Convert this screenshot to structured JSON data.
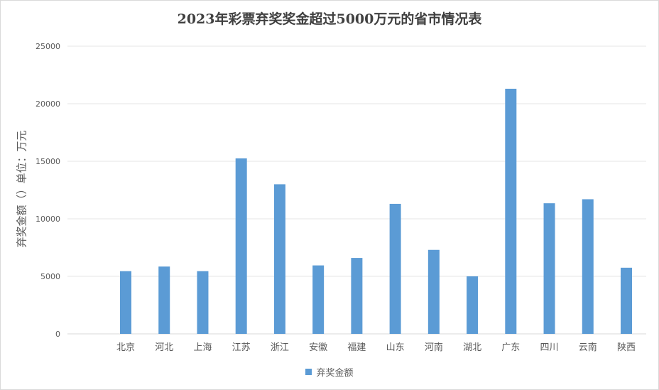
{
  "chart_data": {
    "type": "bar",
    "title": "2023年彩票弃奖奖金超过5000万元的省市情况表",
    "ylabel": "弃奖金额（）单位：万元",
    "xlabel": "",
    "ylim": [
      0,
      25000
    ],
    "yticks": [
      0,
      5000,
      10000,
      15000,
      20000,
      25000
    ],
    "grid": true,
    "legend_position": "bottom",
    "categories": [
      "北京",
      "河北",
      "上海",
      "江苏",
      "浙江",
      "安徽",
      "福建",
      "山东",
      "河南",
      "湖北",
      "广东",
      "四川",
      "云南",
      "陕西"
    ],
    "series": [
      {
        "name": "弃奖金额",
        "color": "#5b9bd5",
        "values": [
          5450,
          5850,
          5450,
          15250,
          13000,
          5950,
          6600,
          11300,
          7300,
          5000,
          21300,
          11350,
          11700,
          5750
        ]
      }
    ]
  }
}
